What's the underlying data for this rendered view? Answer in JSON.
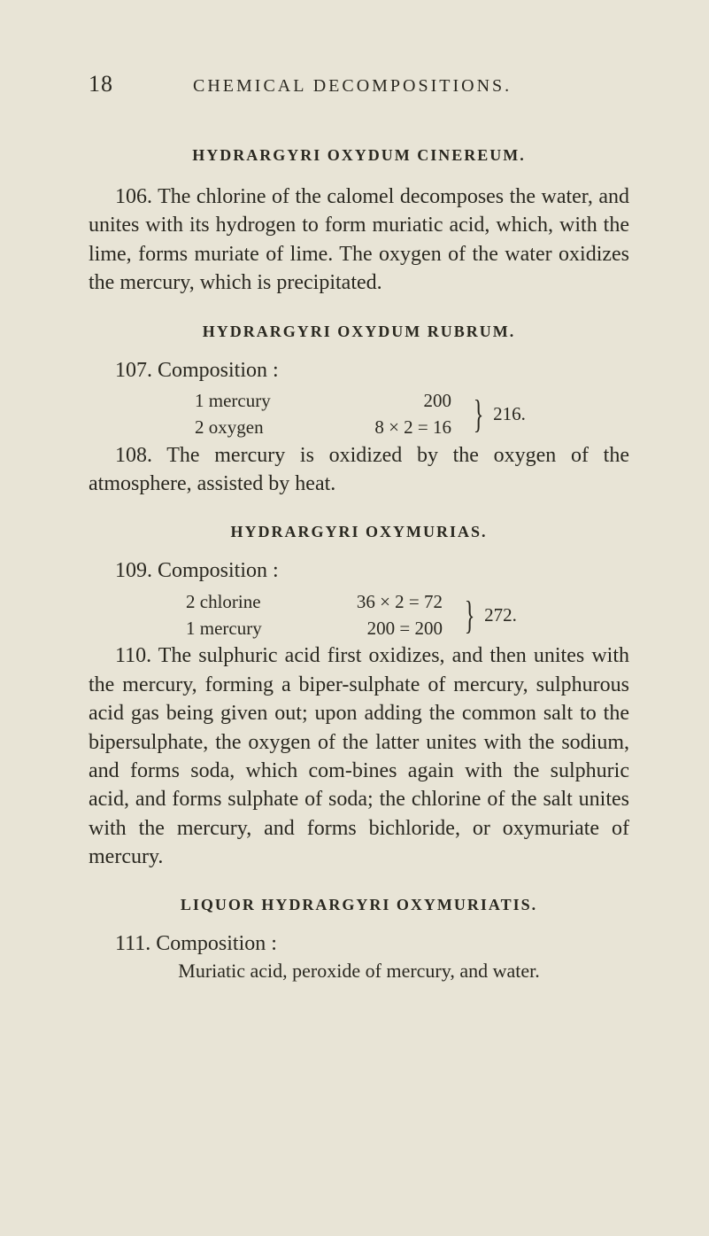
{
  "header": {
    "page_number": "18",
    "running_head": "CHEMICAL DECOMPOSITIONS."
  },
  "section_a": {
    "title": "HYDRARGYRI OXYDUM CINEREUM.",
    "para": "106. The chlorine of the calomel decomposes the water, and unites with its hydrogen to form muriatic acid, which, with the lime, forms muriate of lime. The oxygen of the water oxidizes the mercury, which is precipitated."
  },
  "section_b": {
    "title": "HYDRARGYRI OXYDUM RUBRUM.",
    "comp_header": "107. Composition :",
    "rows": [
      {
        "label": "1 mercury",
        "equation": "200"
      },
      {
        "label": "2 oxygen",
        "equation": "8 × 2 =  16"
      }
    ],
    "total": "216.",
    "para": "108. The mercury is oxidized by the oxygen of the atmosphere, assisted by heat."
  },
  "section_c": {
    "title": "HYDRARGYRI OXYMURIAS.",
    "comp_header": "109. Composition :",
    "rows": [
      {
        "label": "2 chlorine",
        "equation": "36 × 2 =  72"
      },
      {
        "label": "1 mercury",
        "equation": "200 = 200"
      }
    ],
    "total": "272.",
    "para": "110. The sulphuric acid first oxidizes, and then unites with the mercury, forming a biper-sulphate of mercury, sulphurous acid gas being given out; upon adding the common salt to the bipersulphate, the oxygen of the latter unites with the sodium, and forms soda, which com-bines again with the sulphuric acid, and forms sulphate of soda; the chlorine of the salt unites with the mercury, and forms bichloride, or oxymuriate of mercury."
  },
  "section_d": {
    "title": "LIQUOR HYDRARGYRI OXYMURIATIS.",
    "comp_header": "111. Composition :",
    "sub": "Muriatic acid, peroxide of mercury, and water."
  }
}
